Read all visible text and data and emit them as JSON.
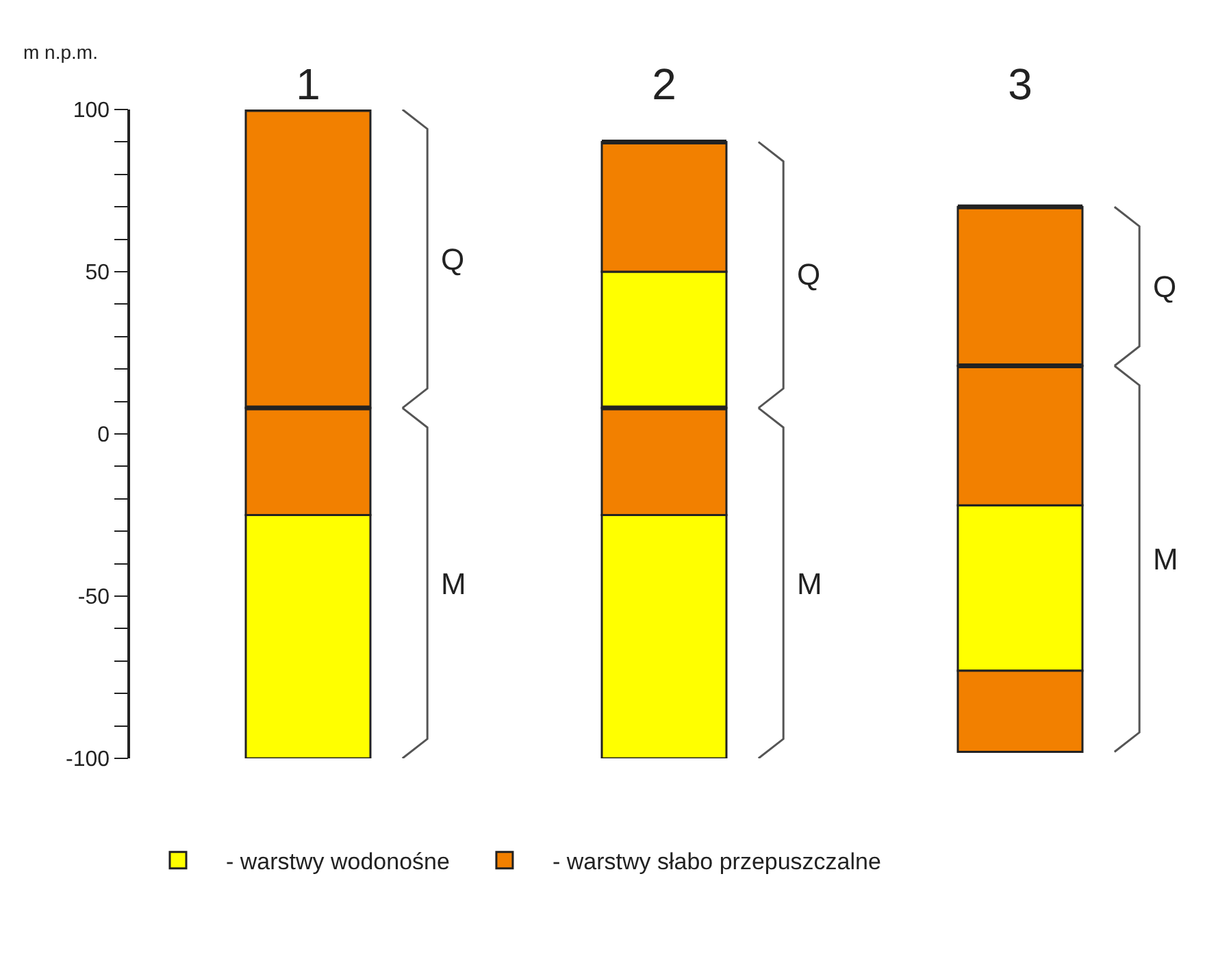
{
  "chart_data": {
    "type": "bar",
    "ylabel": "m n.p.m.",
    "categories": [
      "1",
      "2",
      "3"
    ],
    "legend": "bottom",
    "ylim": [
      -100,
      100
    ],
    "yticks": [
      -100,
      {
        "value": -90,
        "label": null
      },
      {
        "value": -80,
        "label": null
      },
      {
        "value": -70,
        "label": null
      },
      {
        "value": -60,
        "label": null
      },
      -50,
      {
        "value": -40,
        "label": null
      },
      {
        "value": -30,
        "label": null
      },
      {
        "value": -20,
        "label": null
      },
      {
        "value": -10,
        "label": null
      },
      0,
      {
        "value": 10,
        "label": null
      },
      {
        "value": 20,
        "label": null
      },
      {
        "value": 30,
        "label": null
      },
      {
        "value": 40,
        "label": null
      },
      50,
      {
        "value": 60,
        "label": null
      },
      {
        "value": 70,
        "label": null
      },
      {
        "value": 80,
        "label": null
      },
      {
        "value": 90,
        "label": null
      },
      100
    ],
    "series": [
      {
        "name": "- warstwy wodonośne",
        "color": "#ffff00",
        "x": [
          "1",
          "2",
          "3"
        ],
        "base": [
          -100,
          -100,
          -73
        ],
        "values": [
          75,
          75,
          51
        ]
      },
      {
        "name": "- warstwy słabo przepuszczalne",
        "color": "#f28000",
        "x": [
          "1",
          "2",
          "3",
          "3"
        ],
        "base": [
          -25,
          -25,
          -98,
          -22
        ],
        "values": [
          33,
          33,
          25,
          43
        ]
      },
      {
        "color": "#ffff00",
        "x": [
          "2"
        ],
        "base": [
          8
        ],
        "values": [
          42
        ]
      },
      {
        "color": "#f28000",
        "x": [
          "1",
          "2",
          "3"
        ],
        "base": [
          8,
          50,
          21
        ],
        "values": [
          92,
          40,
          49
        ]
      }
    ],
    "annotations": [
      "Q",
      "M",
      "Q",
      "M",
      "Q",
      "M"
    ]
  }
}
